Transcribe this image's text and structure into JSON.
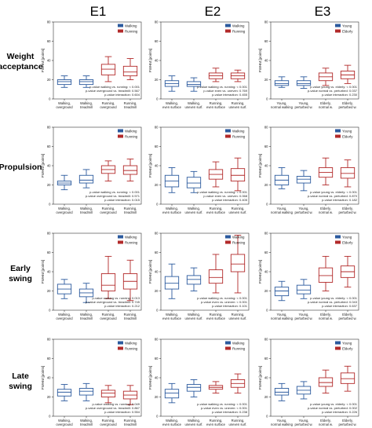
{
  "figure": {
    "columns": [
      "E1",
      "E2",
      "E3"
    ],
    "rows": [
      [
        "Weight",
        "acceptance"
      ],
      [
        "Propulsion"
      ],
      [
        "Early",
        "swing"
      ],
      [
        "Late",
        "swing"
      ]
    ],
    "ylabel": "FWHM [points]",
    "yticks": [
      "0",
      "20",
      "40",
      "60",
      "80"
    ],
    "colors": {
      "blue": "#2b5a9e",
      "red": "#b22a2a"
    }
  },
  "chart_data": [
    {
      "type": "box",
      "row": 0,
      "col": 0,
      "ylabel": "FWHM [points]",
      "ylim": [
        0,
        80
      ],
      "legend": [
        "Walking",
        "Running"
      ],
      "categories": [
        [
          "Walking,",
          "overground"
        ],
        [
          "Walking,",
          "treadmill"
        ],
        [
          "Running,",
          "overground"
        ],
        [
          "Running,",
          "treadmill"
        ]
      ],
      "boxes": [
        {
          "whisker_low": 12,
          "q1": 15,
          "median": 18,
          "q3": 20,
          "whisker_high": 24,
          "color": "blue"
        },
        {
          "whisker_low": 12,
          "q1": 15,
          "median": 18,
          "q3": 20,
          "whisker_high": 24,
          "color": "blue"
        },
        {
          "whisker_low": 18,
          "q1": 25,
          "median": 31,
          "q3": 36,
          "whisker_high": 44,
          "color": "red"
        },
        {
          "whisker_low": 20,
          "q1": 24,
          "median": 28,
          "q3": 34,
          "whisker_high": 42,
          "color": "red"
        }
      ],
      "stats": [
        "p-value walking vs. running: < 0.001",
        "p-value overground vs. treadmill: 0.567",
        "p-value interaction: 0.604"
      ]
    },
    {
      "type": "box",
      "row": 0,
      "col": 1,
      "ylabel": "FWHM [points]",
      "ylim": [
        0,
        80
      ],
      "legend": [
        "Walking",
        "Running"
      ],
      "categories": [
        [
          "Walking,",
          "even surface"
        ],
        [
          "Walking,",
          "uneven surf."
        ],
        [
          "Running,",
          "even surface"
        ],
        [
          "Running,",
          "uneven surf."
        ]
      ],
      "boxes": [
        {
          "whisker_low": 8,
          "q1": 13,
          "median": 16,
          "q3": 19,
          "whisker_high": 24,
          "color": "blue"
        },
        {
          "whisker_low": 8,
          "q1": 13,
          "median": 15,
          "q3": 18,
          "whisker_high": 22,
          "color": "blue"
        },
        {
          "whisker_low": 18,
          "q1": 21,
          "median": 24,
          "q3": 27,
          "whisker_high": 32,
          "color": "red"
        },
        {
          "whisker_low": 18,
          "q1": 21,
          "median": 24,
          "q3": 27,
          "whisker_high": 30,
          "color": "red"
        }
      ],
      "stats": [
        "p-value walking vs. running: < 0.001",
        "p-value even vs. uneven: 0.769",
        "p-value interaction: 0.455"
      ]
    },
    {
      "type": "box",
      "row": 0,
      "col": 2,
      "ylabel": "FWHM [points]",
      "ylim": [
        0,
        80
      ],
      "legend": [
        "Young",
        "Elderly"
      ],
      "categories": [
        [
          "Young,",
          "normal walking"
        ],
        [
          "Young,",
          "perturbed w."
        ],
        [
          "Elderly,",
          "normal w."
        ],
        [
          "Elderly,",
          "perturbed w."
        ]
      ],
      "boxes": [
        {
          "whisker_low": 12,
          "q1": 14,
          "median": 16,
          "q3": 19,
          "whisker_high": 23,
          "color": "blue"
        },
        {
          "whisker_low": 11,
          "q1": 14,
          "median": 16,
          "q3": 19,
          "whisker_high": 23,
          "color": "blue"
        },
        {
          "whisker_low": 14,
          "q1": 19,
          "median": 23,
          "q3": 27,
          "whisker_high": 32,
          "color": "red"
        },
        {
          "whisker_low": 16,
          "q1": 21,
          "median": 25,
          "q3": 29,
          "whisker_high": 35,
          "color": "red"
        }
      ],
      "stats": [
        "p-value young vs. elderly: < 0.001",
        "p-value normal vs. perturbed: 0.037",
        "p-value interaction: 0.230"
      ]
    },
    {
      "type": "box",
      "row": 1,
      "col": 0,
      "ylabel": "FWHM [points]",
      "ylim": [
        0,
        80
      ],
      "legend": [
        "Walking",
        "Running"
      ],
      "categories": [
        [
          "Walking,",
          "overground"
        ],
        [
          "Walking,",
          "treadmill"
        ],
        [
          "Running,",
          "overground"
        ],
        [
          "Running,",
          "treadmill"
        ]
      ],
      "boxes": [
        {
          "whisker_low": 15,
          "q1": 20,
          "median": 22,
          "q3": 24,
          "whisker_high": 30,
          "color": "blue"
        },
        {
          "whisker_low": 17,
          "q1": 22,
          "median": 25,
          "q3": 30,
          "whisker_high": 36,
          "color": "blue"
        },
        {
          "whisker_low": 24,
          "q1": 32,
          "median": 36,
          "q3": 40,
          "whisker_high": 45,
          "color": "red"
        },
        {
          "whisker_low": 24,
          "q1": 31,
          "median": 35,
          "q3": 40,
          "whisker_high": 47,
          "color": "red"
        }
      ],
      "stats": [
        "p-value walking vs. running: < 0.001",
        "p-value overground vs. treadmill: 0.571",
        "p-value interaction: 0.015"
      ]
    },
    {
      "type": "box",
      "row": 1,
      "col": 1,
      "ylabel": "FWHM [points]",
      "ylim": [
        0,
        80
      ],
      "legend": [
        "Walking",
        "Running"
      ],
      "categories": [
        [
          "Walking,",
          "even surface"
        ],
        [
          "Walking,",
          "uneven surf."
        ],
        [
          "Running,",
          "even surface"
        ],
        [
          "Running,",
          "uneven surf."
        ]
      ],
      "boxes": [
        {
          "whisker_low": 12,
          "q1": 18,
          "median": 24,
          "q3": 30,
          "whisker_high": 38,
          "color": "blue"
        },
        {
          "whisker_low": 12,
          "q1": 17,
          "median": 22,
          "q3": 28,
          "whisker_high": 34,
          "color": "blue"
        },
        {
          "whisker_low": 18,
          "q1": 26,
          "median": 31,
          "q3": 36,
          "whisker_high": 44,
          "color": "red"
        },
        {
          "whisker_low": 14,
          "q1": 24,
          "median": 30,
          "q3": 37,
          "whisker_high": 48,
          "color": "red"
        }
      ],
      "stats": [
        "p-value walking vs. running: < 0.001",
        "p-value even vs. uneven: 0.068",
        "p-value interaction: 0.405"
      ]
    },
    {
      "type": "box",
      "row": 1,
      "col": 2,
      "ylabel": "FWHM [points]",
      "ylim": [
        0,
        80
      ],
      "legend": [
        "Young",
        "Elderly"
      ],
      "categories": [
        [
          "Young,",
          "normal walking"
        ],
        [
          "Young,",
          "perturbed w."
        ],
        [
          "Elderly,",
          "normal w."
        ],
        [
          "Elderly,",
          "perturbed w."
        ]
      ],
      "boxes": [
        {
          "whisker_low": 16,
          "q1": 20,
          "median": 25,
          "q3": 30,
          "whisker_high": 38,
          "color": "blue"
        },
        {
          "whisker_low": 14,
          "q1": 22,
          "median": 26,
          "q3": 29,
          "whisker_high": 35,
          "color": "blue"
        },
        {
          "whisker_low": 20,
          "q1": 28,
          "median": 33,
          "q3": 38,
          "whisker_high": 48,
          "color": "red"
        },
        {
          "whisker_low": 18,
          "q1": 27,
          "median": 32,
          "q3": 38,
          "whisker_high": 46,
          "color": "red"
        }
      ],
      "stats": [
        "p-value young vs. elderly: < 0.001",
        "p-value normal vs. perturbed: 0.870",
        "p-value interaction: 0.182"
      ]
    },
    {
      "type": "box",
      "row": 2,
      "col": 0,
      "ylabel": "FWHM [points]",
      "ylim": [
        0,
        80
      ],
      "legend": [
        "Walking",
        "Running"
      ],
      "categories": [
        [
          "Walking,",
          "overground"
        ],
        [
          "Walking,",
          "treadmill"
        ],
        [
          "Running,",
          "overground"
        ],
        [
          "Running,",
          "treadmill"
        ]
      ],
      "boxes": [
        {
          "whisker_low": 12,
          "q1": 17,
          "median": 22,
          "q3": 27,
          "whisker_high": 32,
          "color": "blue"
        },
        {
          "whisker_low": 8,
          "q1": 14,
          "median": 18,
          "q3": 22,
          "whisker_high": 28,
          "color": "blue"
        },
        {
          "whisker_low": 12,
          "q1": 20,
          "median": 26,
          "q3": 38,
          "whisker_high": 56,
          "color": "red"
        },
        {
          "whisker_low": 10,
          "q1": 22,
          "median": 30,
          "q3": 38,
          "whisker_high": 52,
          "color": "red"
        }
      ],
      "stats": [
        "p-value walking vs. running: 0.013",
        "p-value overground vs. treadmill: 0.745",
        "p-value interaction: 0.212"
      ]
    },
    {
      "type": "box",
      "row": 2,
      "col": 1,
      "ylabel": "FWHM [points]",
      "ylim": [
        0,
        80
      ],
      "legend": [
        "Walking",
        "Running"
      ],
      "categories": [
        [
          "Walking,",
          "even surface"
        ],
        [
          "Walking,",
          "uneven surf."
        ],
        [
          "Running,",
          "even surface"
        ],
        [
          "Running,",
          "uneven surf."
        ]
      ],
      "boxes": [
        {
          "whisker_low": 12,
          "q1": 22,
          "median": 28,
          "q3": 35,
          "whisker_high": 48,
          "color": "blue"
        },
        {
          "whisker_low": 20,
          "q1": 27,
          "median": 32,
          "q3": 36,
          "whisker_high": 44,
          "color": "blue"
        },
        {
          "whisker_low": 18,
          "q1": 28,
          "median": 34,
          "q3": 42,
          "whisker_high": 58,
          "color": "red"
        },
        {
          "whisker_low": 18,
          "q1": 40,
          "median": 48,
          "q3": 58,
          "whisker_high": 78,
          "color": "red"
        }
      ],
      "stats": [
        "p-value walking vs. running: < 0.001",
        "p-value even vs. uneven: < 0.001",
        "p-value interaction: 0.101"
      ]
    },
    {
      "type": "box",
      "row": 2,
      "col": 2,
      "ylabel": "FWHM [points]",
      "ylim": [
        0,
        80
      ],
      "legend": [
        "Young",
        "Elderly"
      ],
      "categories": [
        [
          "Young,",
          "normal walking"
        ],
        [
          "Young,",
          "perturbed w."
        ],
        [
          "Elderly,",
          "normal w."
        ],
        [
          "Elderly,",
          "perturbed w."
        ]
      ],
      "boxes": [
        {
          "whisker_low": 10,
          "q1": 15,
          "median": 20,
          "q3": 24,
          "whisker_high": 30,
          "color": "blue"
        },
        {
          "whisker_low": 12,
          "q1": 17,
          "median": 21,
          "q3": 26,
          "whisker_high": 32,
          "color": "blue"
        },
        {
          "whisker_low": 20,
          "q1": 29,
          "median": 36,
          "q3": 44,
          "whisker_high": 56,
          "color": "red"
        },
        {
          "whisker_low": 24,
          "q1": 34,
          "median": 40,
          "q3": 46,
          "whisker_high": 56,
          "color": "red"
        }
      ],
      "stats": [
        "p-value young vs. elderly: < 0.001",
        "p-value normal vs. perturbed: 0.043",
        "p-value interaction: 0.637"
      ]
    },
    {
      "type": "box",
      "row": 3,
      "col": 0,
      "ylabel": "FWHM [points]",
      "ylim": [
        0,
        80
      ],
      "legend": [
        "Walking",
        "Running"
      ],
      "categories": [
        [
          "Walking,",
          "overground"
        ],
        [
          "Walking,",
          "treadmill"
        ],
        [
          "Running,",
          "overground"
        ],
        [
          "Running,",
          "treadmill"
        ]
      ],
      "boxes": [
        {
          "whisker_low": 16,
          "q1": 21,
          "median": 25,
          "q3": 28,
          "whisker_high": 33,
          "color": "blue"
        },
        {
          "whisker_low": 16,
          "q1": 22,
          "median": 26,
          "q3": 29,
          "whisker_high": 34,
          "color": "blue"
        },
        {
          "whisker_low": 14,
          "q1": 20,
          "median": 24,
          "q3": 27,
          "whisker_high": 32,
          "color": "red"
        },
        {
          "whisker_low": 12,
          "q1": 18,
          "median": 22,
          "q3": 26,
          "whisker_high": 32,
          "color": "red"
        }
      ],
      "stats": [
        "p-value walking vs. running: 0.049",
        "p-value overground vs. treadmill: 0.867",
        "p-value interaction: 0.554"
      ]
    },
    {
      "type": "box",
      "row": 3,
      "col": 1,
      "ylabel": "FWHM [points]",
      "ylim": [
        0,
        80
      ],
      "legend": [
        "Walking",
        "Running"
      ],
      "categories": [
        [
          "Walking,",
          "even surface"
        ],
        [
          "Walking,",
          "uneven surf."
        ],
        [
          "Running,",
          "even surface"
        ],
        [
          "Running,",
          "uneven surf."
        ]
      ],
      "boxes": [
        {
          "whisker_low": 14,
          "q1": 19,
          "median": 24,
          "q3": 28,
          "whisker_high": 34,
          "color": "blue"
        },
        {
          "whisker_low": 20,
          "q1": 26,
          "median": 30,
          "q3": 33,
          "whisker_high": 38,
          "color": "blue"
        },
        {
          "whisker_low": 24,
          "q1": 28,
          "median": 30,
          "q3": 32,
          "whisker_high": 36,
          "color": "red"
        },
        {
          "whisker_low": 24,
          "q1": 30,
          "median": 34,
          "q3": 38,
          "whisker_high": 44,
          "color": "red"
        }
      ],
      "stats": [
        "p-value walking vs. running: < 0.001",
        "p-value even vs. uneven: < 0.001",
        "p-value interaction: 0.238"
      ]
    },
    {
      "type": "box",
      "row": 3,
      "col": 2,
      "ylabel": "FWHM [points]",
      "ylim": [
        0,
        80
      ],
      "legend": [
        "Young",
        "Elderly"
      ],
      "categories": [
        [
          "Young,",
          "normal walking"
        ],
        [
          "Young,",
          "perturbed w."
        ],
        [
          "Elderly,",
          "normal w."
        ],
        [
          "Elderly,",
          "perturbed w."
        ]
      ],
      "boxes": [
        {
          "whisker_low": 16,
          "q1": 22,
          "median": 25,
          "q3": 29,
          "whisker_high": 34,
          "color": "blue"
        },
        {
          "whisker_low": 18,
          "q1": 23,
          "median": 27,
          "q3": 31,
          "whisker_high": 36,
          "color": "blue"
        },
        {
          "whisker_low": 24,
          "q1": 31,
          "median": 35,
          "q3": 40,
          "whisker_high": 48,
          "color": "red"
        },
        {
          "whisker_low": 26,
          "q1": 34,
          "median": 39,
          "q3": 45,
          "whisker_high": 52,
          "color": "red"
        }
      ],
      "stats": [
        "p-value young vs. elderly: < 0.001",
        "p-value normal vs. perturbed: 0.002",
        "p-value interaction: 0.226"
      ]
    }
  ]
}
